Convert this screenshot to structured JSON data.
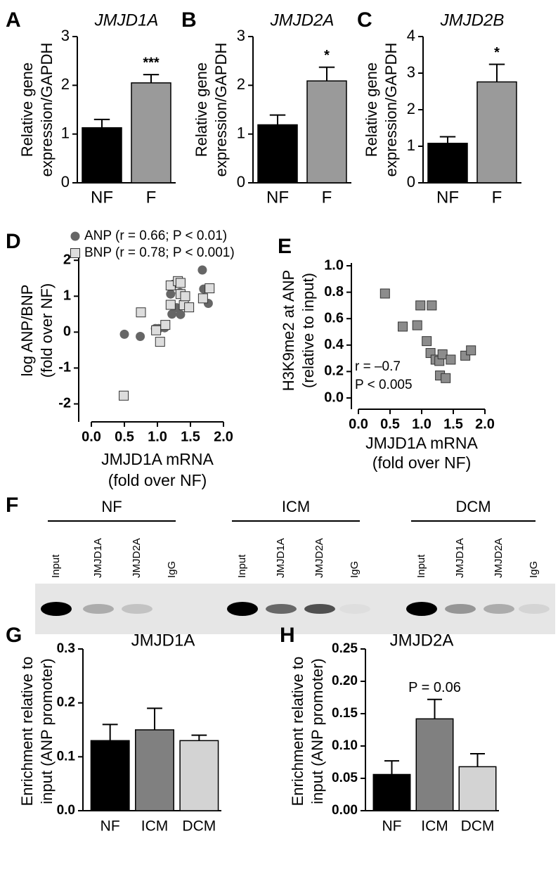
{
  "chart_data": [
    {
      "type": "bar",
      "panel": "A",
      "title": "JMJD1A",
      "ylabel": [
        "Relative gene",
        "expression/GAPDH"
      ],
      "categories": [
        "NF",
        "F"
      ],
      "values": [
        1.13,
        2.05
      ],
      "errors": [
        0.17,
        0.17
      ],
      "colors": [
        "#000000",
        "#9a9a9a"
      ],
      "significance": [
        null,
        "***"
      ],
      "ylim": [
        0,
        3
      ],
      "yticks": [
        0,
        1,
        2,
        3
      ]
    },
    {
      "type": "bar",
      "panel": "B",
      "title": "JMJD2A",
      "ylabel": [
        "Relative gene",
        "expression/GAPDH"
      ],
      "categories": [
        "NF",
        "F"
      ],
      "values": [
        1.19,
        2.09
      ],
      "errors": [
        0.2,
        0.28
      ],
      "colors": [
        "#000000",
        "#9a9a9a"
      ],
      "significance": [
        null,
        "*"
      ],
      "ylim": [
        0,
        3
      ],
      "yticks": [
        0,
        1,
        2,
        3
      ]
    },
    {
      "type": "bar",
      "panel": "C",
      "title": "JMJD2B",
      "ylabel": [
        "Relative gene",
        "expression/GAPDH"
      ],
      "categories": [
        "NF",
        "F"
      ],
      "values": [
        1.08,
        2.76
      ],
      "errors": [
        0.18,
        0.48
      ],
      "colors": [
        "#000000",
        "#9a9a9a"
      ],
      "significance": [
        null,
        "*"
      ],
      "ylim": [
        0,
        4
      ],
      "yticks": [
        0,
        1,
        2,
        3,
        4
      ]
    },
    {
      "type": "scatter",
      "panel": "D",
      "ylabel": [
        "log ANP/BNP",
        "(fold over NF)"
      ],
      "xlabel": [
        "JMJD1A mRNA",
        "(fold over NF)"
      ],
      "xlim": [
        0,
        2
      ],
      "ylim": [
        -2.5,
        2.2
      ],
      "xticks": [
        {
          "value": 0,
          "label": "0.0"
        },
        0.5,
        {
          "value": 1,
          "label": "1.0"
        },
        1.5,
        {
          "value": 2,
          "label": "2.0"
        }
      ],
      "yticks": [
        -2,
        -1,
        0,
        1,
        2
      ],
      "series": [
        {
          "name": "ANP (r = 0.66; P < 0.01)",
          "marker": "circle",
          "color": "#666666",
          "x": [
            0.5,
            0.74,
            0.97,
            1.02,
            1.11,
            1.2,
            1.22,
            1.24,
            1.29,
            1.35,
            1.4,
            1.68,
            1.77,
            1.34,
            1.7
          ],
          "values": [
            -0.06,
            -0.12,
            0.1,
            0.1,
            0.12,
            1.06,
            0.5,
            1.33,
            0.68,
            0.49,
            0.8,
            1.73,
            0.8,
            1.1,
            1.2
          ]
        },
        {
          "name": "BNP (r = 0.78; P < 0.001)",
          "marker": "square",
          "color": "#dddddd",
          "x": [
            0.49,
            0.75,
            0.98,
            1.04,
            1.12,
            1.2,
            1.2,
            1.31,
            1.35,
            1.4,
            1.48,
            1.42,
            1.69,
            1.79,
            1.35
          ],
          "values": [
            -1.77,
            0.55,
            0.05,
            -0.27,
            0.2,
            0.76,
            1.3,
            1.42,
            1.06,
            0.75,
            0.69,
            1.0,
            0.94,
            1.22,
            1.37
          ]
        }
      ]
    },
    {
      "type": "scatter",
      "panel": "E",
      "ylabel": [
        "H3K9me2 at ANP",
        "(relative to input)"
      ],
      "xlabel": [
        "JMJD1A mRNA",
        "(fold over NF)"
      ],
      "xlim": [
        0,
        2
      ],
      "ylim": [
        0,
        1
      ],
      "xticks": [
        {
          "value": 0,
          "label": "0.0"
        },
        0.5,
        {
          "value": 1,
          "label": "1.0"
        },
        1.5,
        {
          "value": 2,
          "label": "2.0"
        }
      ],
      "yticks": [
        {
          "value": 0,
          "label": "0.0"
        },
        0.2,
        0.4,
        0.6,
        0.8,
        {
          "value": 1,
          "label": "1.0"
        }
      ],
      "annotations": [
        "r = –0.7",
        "P < 0.005"
      ],
      "series": [
        {
          "marker": "square",
          "color": "#8c8c8c",
          "x": [
            0.42,
            0.7,
            0.93,
            0.98,
            1.16,
            1.08,
            1.14,
            1.22,
            1.28,
            1.33,
            1.46,
            1.29,
            1.38,
            1.69,
            1.78
          ],
          "values": [
            0.79,
            0.54,
            0.55,
            0.7,
            0.7,
            0.43,
            0.34,
            0.29,
            0.28,
            0.33,
            0.29,
            0.17,
            0.15,
            0.32,
            0.36
          ]
        }
      ]
    },
    {
      "type": "bar",
      "panel": "G",
      "title": "JMJD1A",
      "ylabel": [
        "Enrichment relative to",
        "input (ANP promoter)"
      ],
      "categories": [
        "NF",
        "ICM",
        "DCM"
      ],
      "values": [
        0.13,
        0.15,
        0.13
      ],
      "errors": [
        0.03,
        0.04,
        0.01
      ],
      "colors": [
        "#000000",
        "#808080",
        "#d3d3d3"
      ],
      "ylim": [
        0,
        0.3
      ],
      "yticks": [
        {
          "value": 0,
          "label": "0.0"
        },
        0.1,
        0.2,
        0.3
      ]
    },
    {
      "type": "bar",
      "panel": "H",
      "title": "JMJD2A",
      "ylabel": [
        "Enrichment relative to",
        "input (ANP promoter)"
      ],
      "categories": [
        "NF",
        "ICM",
        "DCM"
      ],
      "values": [
        0.056,
        0.142,
        0.068
      ],
      "errors": [
        0.021,
        0.03,
        0.02
      ],
      "colors": [
        "#000000",
        "#808080",
        "#d3d3d3"
      ],
      "significance": [
        null,
        "P = 0.06",
        null
      ],
      "ylim": [
        0,
        0.25
      ],
      "yticks": [
        {
          "value": 0,
          "label": "0.00"
        },
        0.05,
        {
          "value": 0.1,
          "label": "0.10"
        },
        0.15,
        {
          "value": 0.2,
          "label": "0.20"
        },
        0.25
      ]
    }
  ],
  "gel": {
    "panel": "F",
    "groups": [
      {
        "label": "NF",
        "lanes": [
          "Input",
          "JMJD1A",
          "JMJD2A",
          "IgG"
        ]
      },
      {
        "label": "ICM",
        "lanes": [
          "Input",
          "JMJD1A",
          "JMJD2A",
          "IgG"
        ]
      },
      {
        "label": "DCM",
        "lanes": [
          "Input",
          "JMJD1A",
          "JMJD2A",
          "IgG"
        ]
      }
    ]
  }
}
